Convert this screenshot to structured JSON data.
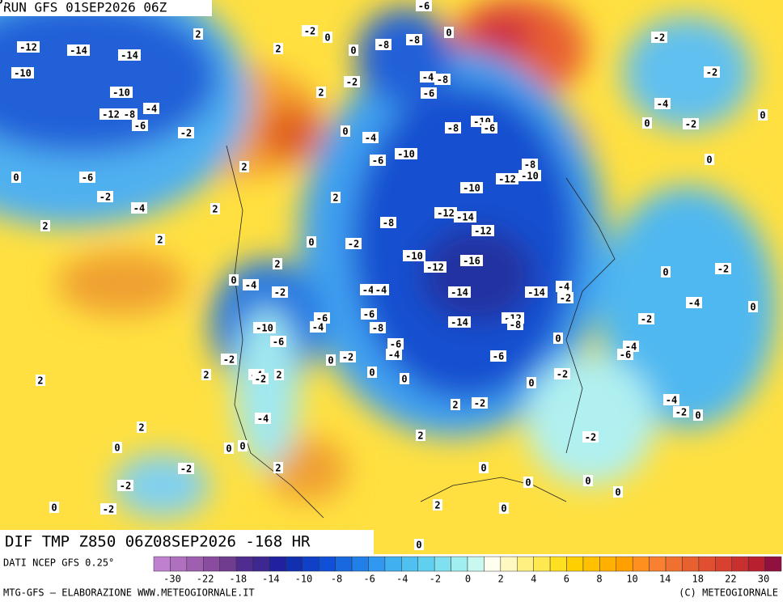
{
  "map": {
    "header": "RUN GFS 01SEP2026 06Z",
    "contour_labels": [
      "-12",
      "-14",
      "-10",
      "-14",
      "-10",
      "-12",
      "-8",
      "-4",
      "-6",
      "-2",
      "2",
      "2",
      "-2",
      "0",
      "0",
      "-8",
      "-8",
      "-6",
      "0",
      "-2",
      "-4",
      "-8",
      "-6",
      "-8",
      "-10",
      "-6",
      "-4",
      "-6",
      "-10",
      "-8",
      "-12",
      "-10",
      "-10",
      "-12",
      "-14",
      "-12",
      "-8",
      "-10",
      "-12",
      "-16",
      "-14",
      "-14",
      "-4",
      "-14",
      "-12",
      "-8",
      "-6",
      "-4",
      "-4",
      "-6",
      "-8",
      "-6",
      "-4",
      "-2",
      "0",
      "0",
      "0",
      "-6",
      "-4",
      "-10",
      "-6",
      "-4",
      "-2",
      "-2",
      "-4",
      "-2",
      "2",
      "-4",
      "2",
      "0",
      "0",
      "2",
      "-2",
      "-2",
      "-2",
      "0",
      "0",
      "2",
      "2",
      "0",
      "-6",
      "-2",
      "-4",
      "2",
      "2",
      "2",
      "2",
      "2",
      "0",
      "-2",
      "2",
      "0",
      "2",
      "0",
      "2",
      "2",
      "-2",
      "0",
      "0",
      "-2",
      "-2",
      "0",
      "0",
      "0",
      "0",
      "0",
      "2",
      "0",
      "-2",
      "-2",
      "-4",
      "-6",
      "-4",
      "-2",
      "0",
      "-4",
      "-2",
      "0",
      "0",
      "0",
      "0",
      "-2",
      "0",
      "-4",
      "-2",
      "-2",
      "0"
    ],
    "field_label": "DIF TMP Z850 06Z08SEP2026 -168 HR",
    "legend": {
      "source": "DATI NCEP GFS 0.25°",
      "colors": [
        "#c080d0",
        "#b070c0",
        "#9f5fb0",
        "#8a4ca0",
        "#703c90",
        "#502c90",
        "#3c2890",
        "#2020a0",
        "#1030b0",
        "#1040c8",
        "#1050d8",
        "#1868e0",
        "#2080e8",
        "#3098f0",
        "#40b0f0",
        "#50c0f0",
        "#60d0f0",
        "#80e0f0",
        "#a0eef0",
        "#c8f8f0",
        "#fffff0",
        "#fff8c0",
        "#fff080",
        "#ffe850",
        "#ffe020",
        "#ffd000",
        "#ffc000",
        "#ffb000",
        "#ffa000",
        "#ff9020",
        "#f88030",
        "#f07030",
        "#e86030",
        "#e05030",
        "#d84030",
        "#c83030",
        "#b82030",
        "#901040"
      ],
      "ticks": [
        -30,
        -22,
        -18,
        -14,
        -10,
        -8,
        -6,
        -4,
        -2,
        0,
        2,
        4,
        6,
        8,
        10,
        14,
        18,
        22,
        30
      ]
    },
    "footer": {
      "left": "MTG-GFS — ELABORAZIONE WWW.METEOGIORNALE.IT",
      "right": "(C) METEOGIORNALE"
    }
  }
}
